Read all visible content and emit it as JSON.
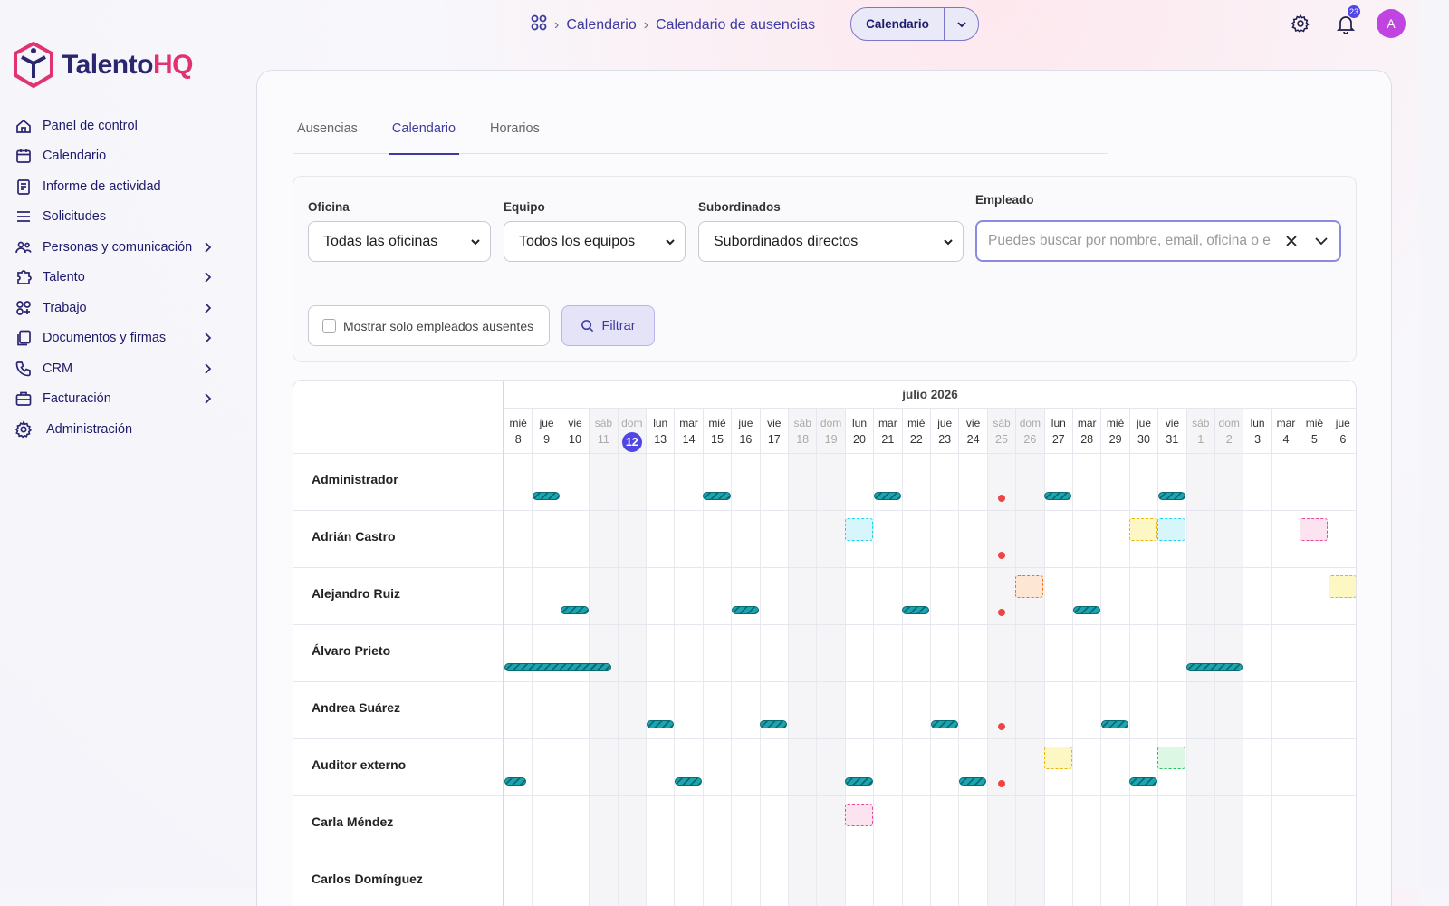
{
  "brand": {
    "name_main": "Talento",
    "name_accent": "HQ",
    "accent_color": "#e0336f",
    "primary_color": "#2b2670"
  },
  "breadcrumb": {
    "home_icon": "grid-icon",
    "items": [
      "Calendario",
      "Calendario de ausencias"
    ]
  },
  "view_switch": {
    "label": "Calendario"
  },
  "header": {
    "notification_count": "23",
    "avatar_initial": "A"
  },
  "sidebar": {
    "items": [
      {
        "label": "Panel de control",
        "icon": "home-icon",
        "chevron": false
      },
      {
        "label": "Calendario",
        "icon": "calendar-icon",
        "chevron": false
      },
      {
        "label": "Informe de actividad",
        "icon": "report-icon",
        "chevron": false
      },
      {
        "label": "Solicitudes",
        "icon": "list-icon",
        "chevron": false
      },
      {
        "label": "Personas y comunicación",
        "icon": "people-icon",
        "chevron": true
      },
      {
        "label": "Talento",
        "icon": "puzzle-icon",
        "chevron": true
      },
      {
        "label": "Trabajo",
        "icon": "apps-icon",
        "chevron": true
      },
      {
        "label": "Documentos y firmas",
        "icon": "documents-icon",
        "chevron": true
      },
      {
        "label": "CRM",
        "icon": "phone-icon",
        "chevron": true
      },
      {
        "label": "Facturación",
        "icon": "briefcase-icon",
        "chevron": true
      },
      {
        "label": "Administración",
        "icon": "gear-icon",
        "chevron": false
      }
    ]
  },
  "tabs": [
    {
      "label": "Ausencias",
      "active": false
    },
    {
      "label": "Calendario",
      "active": true
    },
    {
      "label": "Horarios",
      "active": false
    }
  ],
  "filters": {
    "office": {
      "label": "Oficina",
      "value": "Todas las oficinas"
    },
    "team": {
      "label": "Equipo",
      "value": "Todos los equipos"
    },
    "subordinates": {
      "label": "Subordinados",
      "value": "Subordinados directos"
    },
    "employee": {
      "label": "Empleado",
      "placeholder": "Puedes buscar por nombre, email, oficina o e"
    },
    "only_absent_label": "Mostrar solo empleados ausentes",
    "filter_button": "Filtrar"
  },
  "calendar": {
    "month_label": "julio 2026",
    "today_index": 4,
    "days": [
      {
        "dn": "mié",
        "dd": "8",
        "weekend": false
      },
      {
        "dn": "jue",
        "dd": "9",
        "weekend": false
      },
      {
        "dn": "vie",
        "dd": "10",
        "weekend": false
      },
      {
        "dn": "sáb",
        "dd": "11",
        "weekend": true
      },
      {
        "dn": "dom",
        "dd": "12",
        "weekend": true
      },
      {
        "dn": "lun",
        "dd": "13",
        "weekend": false
      },
      {
        "dn": "mar",
        "dd": "14",
        "weekend": false
      },
      {
        "dn": "mié",
        "dd": "15",
        "weekend": false
      },
      {
        "dn": "jue",
        "dd": "16",
        "weekend": false
      },
      {
        "dn": "vie",
        "dd": "17",
        "weekend": false
      },
      {
        "dn": "sáb",
        "dd": "18",
        "weekend": true
      },
      {
        "dn": "dom",
        "dd": "19",
        "weekend": true
      },
      {
        "dn": "lun",
        "dd": "20",
        "weekend": false
      },
      {
        "dn": "mar",
        "dd": "21",
        "weekend": false
      },
      {
        "dn": "mié",
        "dd": "22",
        "weekend": false
      },
      {
        "dn": "jue",
        "dd": "23",
        "weekend": false
      },
      {
        "dn": "vie",
        "dd": "24",
        "weekend": false
      },
      {
        "dn": "sáb",
        "dd": "25",
        "weekend": true
      },
      {
        "dn": "dom",
        "dd": "26",
        "weekend": true
      },
      {
        "dn": "lun",
        "dd": "27",
        "weekend": false
      },
      {
        "dn": "mar",
        "dd": "28",
        "weekend": false
      },
      {
        "dn": "mié",
        "dd": "29",
        "weekend": false
      },
      {
        "dn": "jue",
        "dd": "30",
        "weekend": false
      },
      {
        "dn": "vie",
        "dd": "31",
        "weekend": false
      },
      {
        "dn": "sáb",
        "dd": "1",
        "weekend": true
      },
      {
        "dn": "dom",
        "dd": "2",
        "weekend": true
      },
      {
        "dn": "lun",
        "dd": "3",
        "weekend": false
      },
      {
        "dn": "mar",
        "dd": "4",
        "weekend": false
      },
      {
        "dn": "mié",
        "dd": "5",
        "weekend": false
      },
      {
        "dn": "jue",
        "dd": "6",
        "weekend": false
      }
    ],
    "employees": [
      {
        "name": "Administrador",
        "bars": [
          [
            1,
            1
          ],
          [
            7,
            1
          ],
          [
            13,
            1
          ],
          [
            19,
            1
          ],
          [
            23,
            1
          ]
        ],
        "boxes": [],
        "dot": true
      },
      {
        "name": "Adrián Castro",
        "bars": [],
        "boxes": [
          [
            12,
            "cyan"
          ],
          [
            22,
            "yellow"
          ],
          [
            23,
            "cyan"
          ],
          [
            28,
            "pink"
          ]
        ],
        "dot": true
      },
      {
        "name": "Alejandro Ruiz",
        "bars": [
          [
            2,
            1
          ],
          [
            8,
            1
          ],
          [
            14,
            1
          ],
          [
            20,
            1
          ]
        ],
        "boxes": [
          [
            18,
            "orange"
          ],
          [
            29,
            "yellow"
          ]
        ],
        "dot": true
      },
      {
        "name": "Álvaro Prieto",
        "bars": [
          [
            0,
            3.8
          ],
          [
            24,
            2
          ]
        ],
        "boxes": [],
        "dot": false
      },
      {
        "name": "Andrea Suárez",
        "bars": [
          [
            5,
            1
          ],
          [
            9,
            1
          ],
          [
            15,
            1
          ],
          [
            21,
            1
          ]
        ],
        "boxes": [],
        "dot": true
      },
      {
        "name": "Auditor externo",
        "bars": [
          [
            0,
            0.8
          ],
          [
            6,
            1
          ],
          [
            12,
            1
          ],
          [
            16,
            1
          ],
          [
            22,
            1
          ]
        ],
        "boxes": [
          [
            19,
            "yellow"
          ],
          [
            23,
            "green"
          ]
        ],
        "dot": true
      },
      {
        "name": "Carla Méndez",
        "bars": [],
        "boxes": [
          [
            12,
            "pink"
          ]
        ],
        "dot": false
      },
      {
        "name": "Carlos Domínguez",
        "bars": [],
        "boxes": [],
        "dot": false
      }
    ],
    "box_colors": {
      "cyan": [
        "#22d3ee",
        "#d6f6fb"
      ],
      "yellow": [
        "#eab308",
        "#fdf7c3"
      ],
      "pink": [
        "#ec4899",
        "#fbe3ef"
      ],
      "orange": [
        "#f97316",
        "#fde6d3"
      ],
      "green": [
        "#22c55e",
        "#dcf7e4"
      ]
    }
  }
}
